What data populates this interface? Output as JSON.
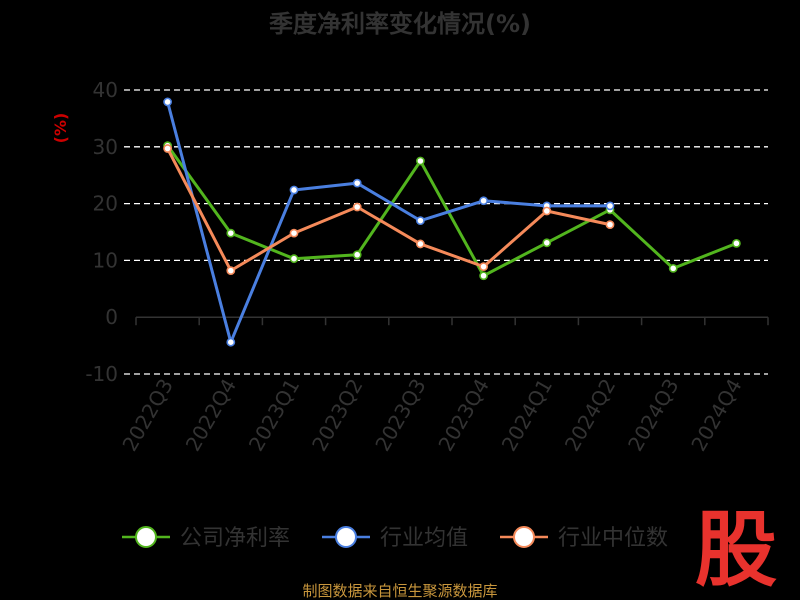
{
  "chart_data": {
    "type": "line",
    "title": "季度净利率变化情况(%)",
    "ylabel": "(%)",
    "categories": [
      "2022Q3",
      "2022Q4",
      "2023Q1",
      "2023Q2",
      "2023Q3",
      "2023Q4",
      "2024Q1",
      "2024Q2",
      "2024Q3",
      "2024Q4"
    ],
    "yticks": [
      "40",
      "30",
      "20",
      "10",
      "0",
      "-10"
    ],
    "ylim": [
      -10,
      40
    ],
    "grid": "horizontal dashed",
    "legend_position": "bottom",
    "series": [
      {
        "name": "公司净利率",
        "color": "#52b51e",
        "values": [
          30.2,
          14.8,
          10.3,
          11.0,
          27.5,
          7.3,
          13.1,
          18.9,
          8.6,
          13.0
        ]
      },
      {
        "name": "行业均值",
        "color": "#4a7fe0",
        "values": [
          37.9,
          -4.4,
          22.4,
          23.6,
          17.0,
          20.5,
          19.6,
          19.6,
          null,
          null
        ]
      },
      {
        "name": "行业中位数",
        "color": "#f58a5a",
        "values": [
          29.7,
          8.2,
          14.8,
          19.4,
          12.9,
          8.9,
          18.7,
          16.3,
          null,
          null
        ]
      }
    ]
  },
  "footer": {
    "source": "制图数据来自恒生聚源数据库",
    "logo": "股"
  }
}
